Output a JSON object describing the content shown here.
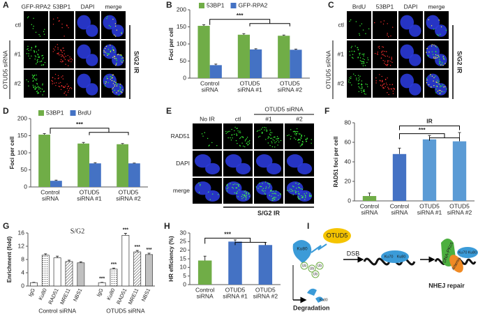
{
  "chart_data": [
    {
      "type": "bar",
      "panel": "B",
      "ylabel": "Foci per cell",
      "categories": [
        [
          "Control",
          "siRNA"
        ],
        [
          "OTUD5",
          "siRNA #1"
        ],
        [
          "OTUD5",
          "siRNA #2"
        ]
      ],
      "series": [
        {
          "name": "53BP1",
          "color": "#70ad47",
          "values": [
            153,
            127,
            124
          ],
          "errors": [
            3,
            3,
            2
          ]
        },
        {
          "name": "GFP-RPA2",
          "color": "#4472c4",
          "values": [
            38,
            84,
            83
          ],
          "errors": [
            3,
            2,
            2
          ]
        }
      ],
      "ylim": [
        0,
        200
      ],
      "yticks": [
        0,
        50,
        100,
        150,
        200
      ],
      "annotations": [
        "***"
      ]
    },
    {
      "type": "bar",
      "panel": "D",
      "ylabel": "Foci per cell",
      "categories": [
        [
          "Control",
          "siRNA"
        ],
        [
          "OTUD5",
          "siRNA #1"
        ],
        [
          "OTUD5",
          "siRNA #2"
        ]
      ],
      "series": [
        {
          "name": "53BP1",
          "color": "#70ad47",
          "values": [
            153,
            127,
            125
          ],
          "errors": [
            3,
            3,
            2
          ]
        },
        {
          "name": "BrdU",
          "color": "#4472c4",
          "values": [
            18,
            69,
            69
          ],
          "errors": [
            2,
            2,
            1
          ]
        }
      ],
      "ylim": [
        0,
        200
      ],
      "yticks": [
        0,
        50,
        100,
        150,
        200
      ],
      "annotations": [
        "***"
      ]
    },
    {
      "type": "bar",
      "panel": "F",
      "ylabel": "RAD51 foci per cell",
      "categories": [
        [
          "Control",
          "siRNA"
        ],
        [
          "Control",
          "siRNA"
        ],
        [
          "OTUD5",
          "siRNA #1"
        ],
        [
          "OTUD5",
          "siRNA #2"
        ]
      ],
      "values": [
        5,
        48,
        63,
        61
      ],
      "errors": [
        3,
        6,
        4,
        9
      ],
      "colors": [
        "#70ad47",
        "#4472c4",
        "#5b9bd5",
        "#5b9bd5"
      ],
      "ylim": [
        0,
        80
      ],
      "yticks": [
        0,
        20,
        40,
        60,
        80
      ],
      "annotations": [
        "IR",
        "***"
      ]
    },
    {
      "type": "bar",
      "panel": "G",
      "title": "S/G2",
      "ylabel": "Enrichment (fold)",
      "categories": [
        "IgG",
        "Ku80",
        "RAD51",
        "MRE11",
        "NBS1",
        "IgG",
        "Ku80",
        "RAD51",
        "MRE11",
        "NBS1"
      ],
      "groups": [
        "Control siRNA",
        "OTUD5 siRNA"
      ],
      "values": [
        1,
        9.3,
        8.5,
        7.4,
        7.0,
        1,
        5.1,
        15.3,
        10.3,
        9.5
      ],
      "errors": [
        0.1,
        0.4,
        0.5,
        0.4,
        0.3,
        0.1,
        0.3,
        0.6,
        0.4,
        0.4
      ],
      "patterns": [
        "plain",
        "dots",
        "plain",
        "hatch",
        "dense",
        "plain",
        "dots",
        "plain",
        "hatch",
        "dense"
      ],
      "value_annotations": [
        null,
        null,
        null,
        null,
        null,
        "***",
        "***",
        "***",
        "***",
        "***"
      ],
      "ylim": [
        0,
        16
      ],
      "yticks": [
        0,
        4,
        8,
        12,
        16
      ]
    },
    {
      "type": "bar",
      "panel": "H",
      "ylabel": "HR efficiency (%)",
      "categories": [
        [
          "Control",
          "siRNA"
        ],
        [
          "OTUD5",
          "siRNA #1"
        ],
        [
          "OTUD5",
          "siRNA #2"
        ]
      ],
      "values": [
        14,
        25,
        23
      ],
      "errors": [
        2.5,
        1,
        1.5
      ],
      "colors": [
        "#70ad47",
        "#4472c4",
        "#4472c4"
      ],
      "ylim": [
        0,
        30
      ],
      "yticks": [
        0,
        5,
        10,
        15,
        20,
        25,
        30
      ],
      "annotations": [
        "***"
      ]
    }
  ],
  "micrographs": {
    "A": {
      "panel": "A",
      "columns": [
        "GFP-RPA2",
        "53BP1",
        "DAPI",
        "merge"
      ],
      "rows": [
        "ctl",
        "#1",
        "#2"
      ],
      "row_group": "OTUD5 siRNA",
      "side_label": "S/G2 IR"
    },
    "C": {
      "panel": "C",
      "columns": [
        "BrdU",
        "53BP1",
        "DAPI",
        "merge"
      ],
      "rows": [
        "ctl",
        "#1",
        "#2"
      ],
      "row_group": "OTUD5 siRNA",
      "side_label": "S/G2 IR"
    },
    "E": {
      "panel": "E",
      "columns": [
        "No IR",
        "ctl",
        "#1",
        "#2"
      ],
      "column_group": "OTUD5 siRNA",
      "rows": [
        "RAD51",
        "DAPI",
        "merge"
      ],
      "bottom_label": "S/G2 IR"
    }
  },
  "diagram": {
    "panel": "I",
    "otud5": "OTUD5",
    "ku80": "Ku80",
    "ub": [
      "Ub",
      "Ub",
      "Ub",
      "Ub"
    ],
    "dsb": "DSB",
    "ku70_a": "Ku70",
    "ku80_a": "Ku80",
    "dnapkcs": "DNA-PKcs",
    "artemis": "Artemis",
    "ku70_b": "Ku70",
    "ku80_b": "Ku80",
    "nhej": "NHEJ repair",
    "degradation": "Degradation",
    "fragment": "Ku80"
  }
}
